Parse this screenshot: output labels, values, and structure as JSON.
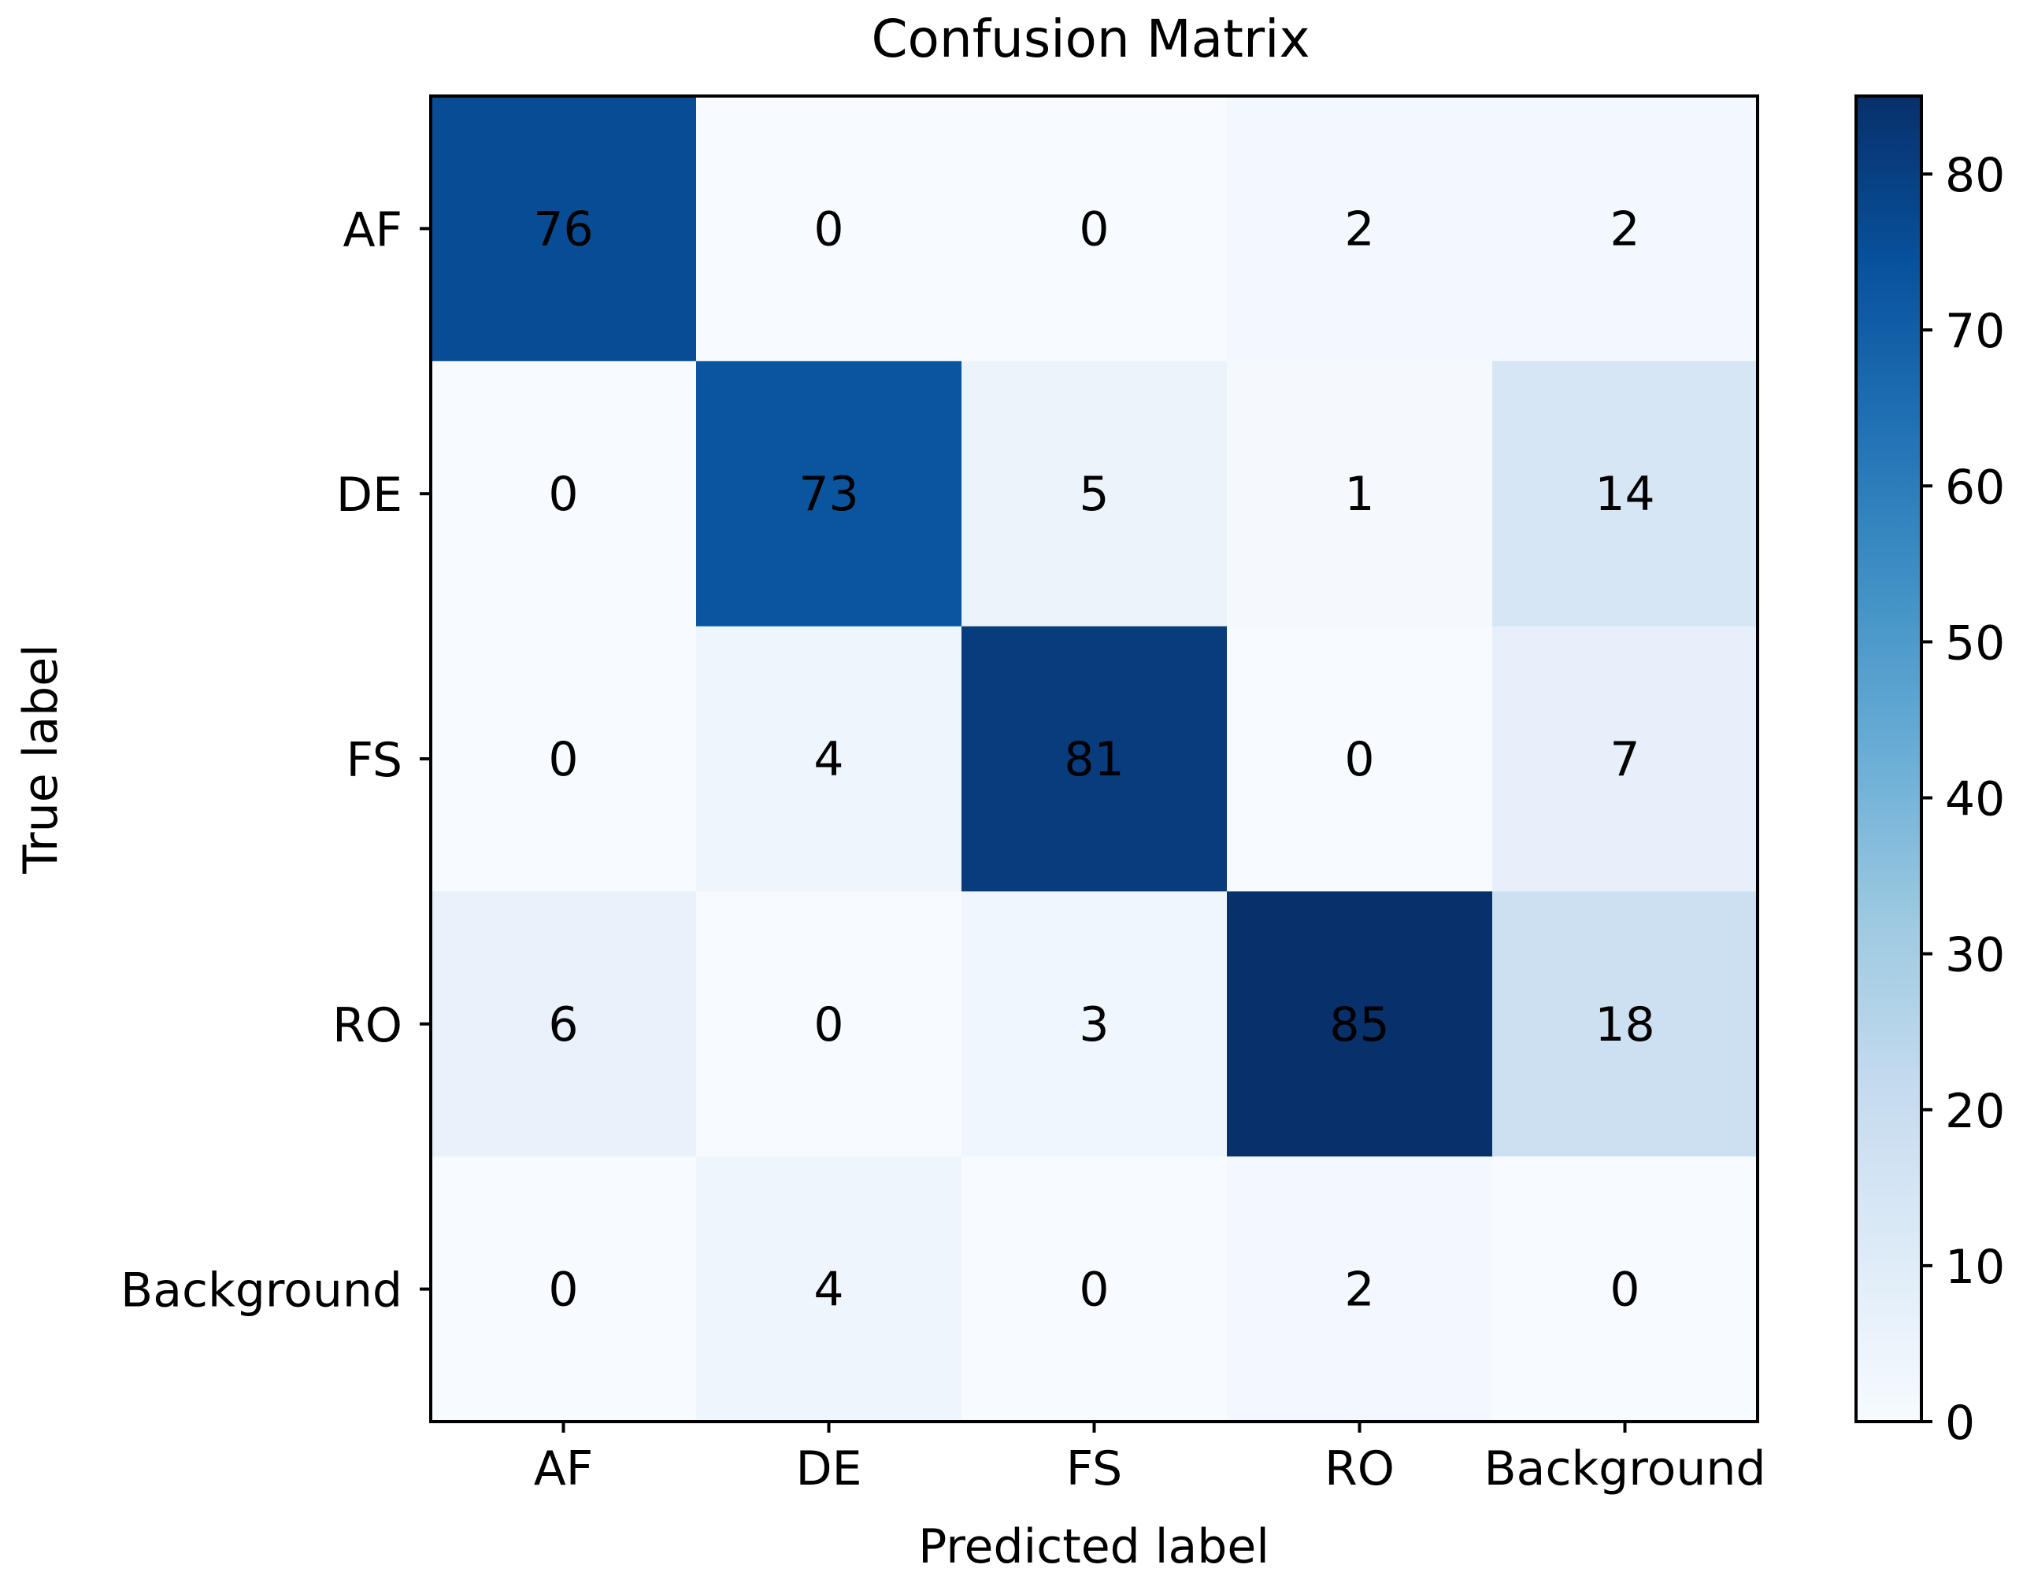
{
  "chart_data": {
    "type": "heatmap",
    "title": "Confusion Matrix",
    "xlabel": "Predicted label",
    "ylabel": "True label",
    "x_categories": [
      "AF",
      "DE",
      "FS",
      "RO",
      "Background"
    ],
    "y_categories": [
      "AF",
      "DE",
      "FS",
      "RO",
      "Background"
    ],
    "values": [
      [
        76,
        0,
        0,
        2,
        2
      ],
      [
        0,
        73,
        5,
        1,
        14
      ],
      [
        0,
        4,
        81,
        0,
        7
      ],
      [
        6,
        0,
        3,
        85,
        18
      ],
      [
        0,
        4,
        0,
        2,
        0
      ]
    ],
    "colormap": "Blues",
    "colorbar": {
      "min": 0,
      "max": 85,
      "ticks": [
        0,
        10,
        20,
        30,
        40,
        50,
        60,
        70,
        80
      ]
    },
    "grid": false
  },
  "colors": {
    "blues_stops": [
      "#f7fbff",
      "#deebf7",
      "#c6dbef",
      "#9ecae1",
      "#6baed6",
      "#4292c6",
      "#2171b5",
      "#08519c",
      "#08306b"
    ],
    "text_dark": "#000000",
    "axes": "#000000"
  }
}
